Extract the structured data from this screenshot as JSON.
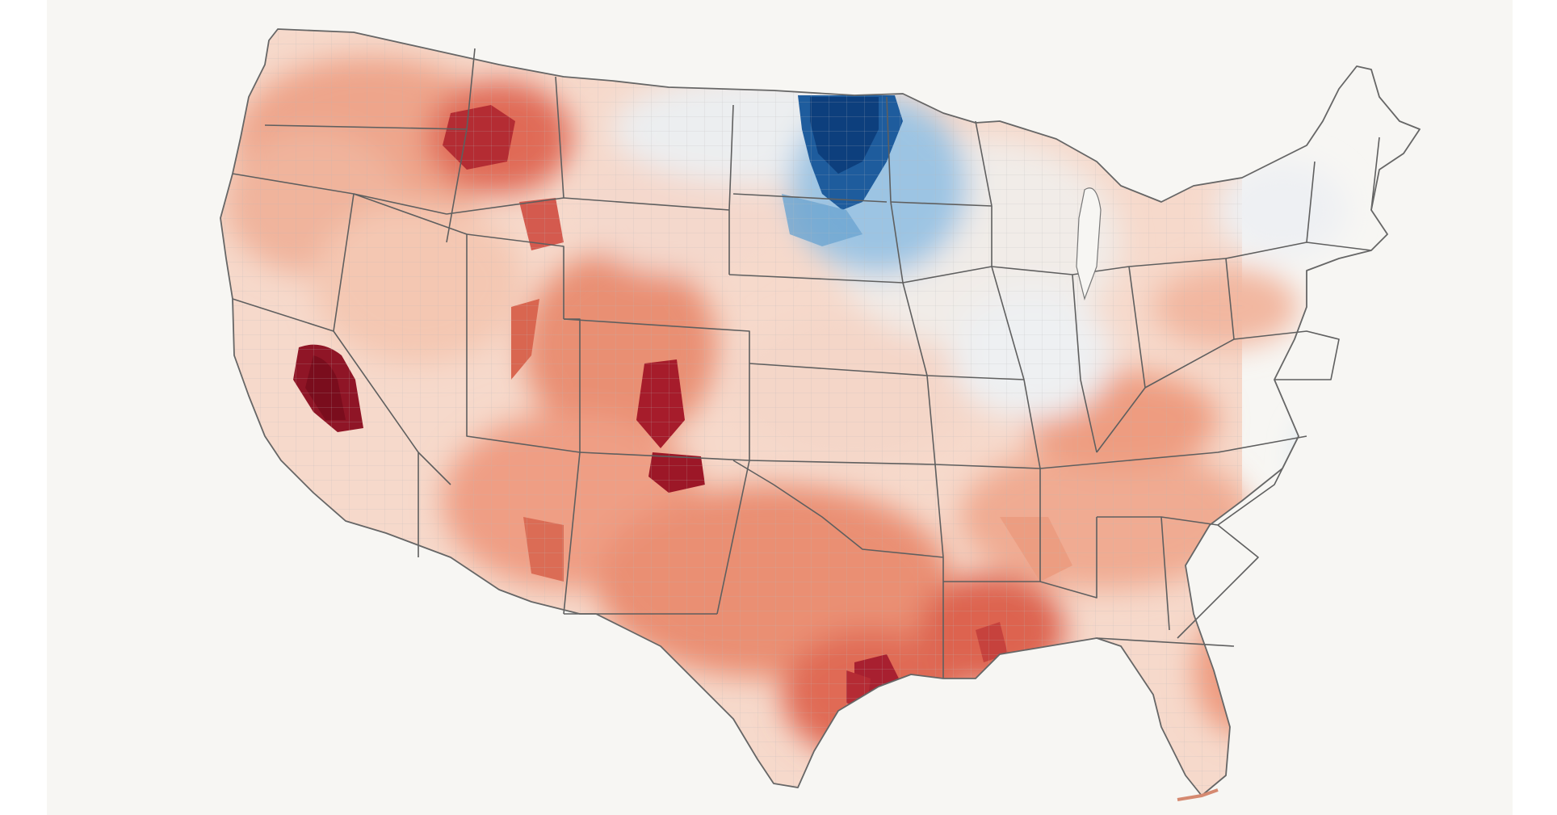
{
  "map": {
    "kind": "choropleth",
    "region": "contiguous-united-states",
    "units": "counties",
    "colors": {
      "background": "#f7f6f3",
      "page": "#ffffff",
      "neutral": "#f3efec",
      "light_red": "#f7d2c2",
      "mid_red": "#e98f73",
      "strong_red": "#c9463f",
      "darkest_red": "#7e0f1f",
      "light_blue": "#dceaf4",
      "mid_blue": "#7fb1d8",
      "strong_blue": "#2c6fae",
      "darkest_blue": "#0d3f7d",
      "state_border": "#5f5f5f",
      "county_border": "#b9b9b9"
    },
    "color_scale": "diverging-blue-red",
    "legend_visible": false,
    "labels_visible": false
  }
}
